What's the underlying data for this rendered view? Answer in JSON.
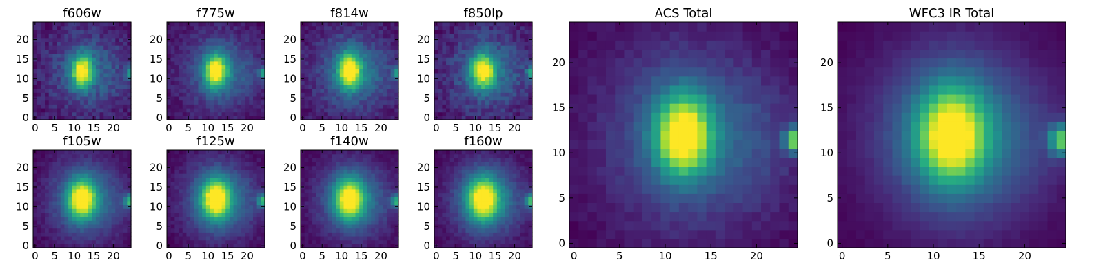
{
  "chart_data": [
    {
      "type": "heatmap",
      "title": "f606w",
      "grid_size": 25,
      "colormap": "viridis",
      "xlim": [
        -0.5,
        24.5
      ],
      "ylim": [
        -0.5,
        24.5
      ],
      "xticks": [
        0,
        5,
        10,
        15,
        20
      ],
      "yticks": [
        0,
        5,
        10,
        15,
        20
      ],
      "source_peak": {
        "x": 12,
        "y": 12,
        "sigma_x": 1.8,
        "sigma_y": 2.8
      },
      "companion_peak": {
        "x": 24,
        "y": 11.5,
        "sigma_x": 0.7,
        "sigma_y": 1.0,
        "amplitude": 0.55
      },
      "halo_amplitude": 0.35,
      "noise_level": 0.1
    },
    {
      "type": "heatmap",
      "title": "f775w",
      "grid_size": 25,
      "colormap": "viridis",
      "xlim": [
        -0.5,
        24.5
      ],
      "ylim": [
        -0.5,
        24.5
      ],
      "xticks": [
        0,
        5,
        10,
        15,
        20
      ],
      "yticks": [
        0,
        5,
        10,
        15,
        20
      ],
      "source_peak": {
        "x": 12,
        "y": 12,
        "sigma_x": 1.9,
        "sigma_y": 2.9
      },
      "companion_peak": {
        "x": 24,
        "y": 11.5,
        "sigma_x": 0.7,
        "sigma_y": 1.0,
        "amplitude": 0.6
      },
      "halo_amplitude": 0.38,
      "noise_level": 0.07
    },
    {
      "type": "heatmap",
      "title": "f814w",
      "grid_size": 25,
      "colormap": "viridis",
      "xlim": [
        -0.5,
        24.5
      ],
      "ylim": [
        -0.5,
        24.5
      ],
      "xticks": [
        0,
        5,
        10,
        15,
        20
      ],
      "yticks": [
        0,
        5,
        10,
        15,
        20
      ],
      "source_peak": {
        "x": 12,
        "y": 12,
        "sigma_x": 2.0,
        "sigma_y": 3.0
      },
      "companion_peak": {
        "x": 24,
        "y": 11.5,
        "sigma_x": 0.7,
        "sigma_y": 1.0,
        "amplitude": 0.6
      },
      "halo_amplitude": 0.4,
      "noise_level": 0.08
    },
    {
      "type": "heatmap",
      "title": "f850lp",
      "grid_size": 25,
      "colormap": "viridis",
      "xlim": [
        -0.5,
        24.5
      ],
      "ylim": [
        -0.5,
        24.5
      ],
      "xticks": [
        0,
        5,
        10,
        15,
        20
      ],
      "yticks": [
        0,
        5,
        10,
        15,
        20
      ],
      "source_peak": {
        "x": 12,
        "y": 12,
        "sigma_x": 2.0,
        "sigma_y": 3.0
      },
      "companion_peak": {
        "x": 24,
        "y": 11.5,
        "sigma_x": 0.7,
        "sigma_y": 1.0,
        "amplitude": 0.65
      },
      "halo_amplitude": 0.4,
      "noise_level": 0.1
    },
    {
      "type": "heatmap",
      "title": "f105w",
      "grid_size": 25,
      "colormap": "viridis",
      "xlim": [
        -0.5,
        24.5
      ],
      "ylim": [
        -0.5,
        24.5
      ],
      "xticks": [
        0,
        5,
        10,
        15,
        20
      ],
      "yticks": [
        0,
        5,
        10,
        15,
        20
      ],
      "source_peak": {
        "x": 12,
        "y": 12,
        "sigma_x": 2.3,
        "sigma_y": 3.3
      },
      "companion_peak": {
        "x": 24,
        "y": 11.5,
        "sigma_x": 0.9,
        "sigma_y": 1.2,
        "amplitude": 0.7
      },
      "halo_amplitude": 0.5,
      "noise_level": 0.05
    },
    {
      "type": "heatmap",
      "title": "f125w",
      "grid_size": 25,
      "colormap": "viridis",
      "xlim": [
        -0.5,
        24.5
      ],
      "ylim": [
        -0.5,
        24.5
      ],
      "xticks": [
        0,
        5,
        10,
        15,
        20
      ],
      "yticks": [
        0,
        5,
        10,
        15,
        20
      ],
      "source_peak": {
        "x": 12,
        "y": 12,
        "sigma_x": 2.4,
        "sigma_y": 3.4
      },
      "companion_peak": {
        "x": 24,
        "y": 11.5,
        "sigma_x": 0.9,
        "sigma_y": 1.2,
        "amplitude": 0.7
      },
      "halo_amplitude": 0.52,
      "noise_level": 0.05
    },
    {
      "type": "heatmap",
      "title": "f140w",
      "grid_size": 25,
      "colormap": "viridis",
      "xlim": [
        -0.5,
        24.5
      ],
      "ylim": [
        -0.5,
        24.5
      ],
      "xticks": [
        0,
        5,
        10,
        15,
        20
      ],
      "yticks": [
        0,
        5,
        10,
        15,
        20
      ],
      "source_peak": {
        "x": 12,
        "y": 12,
        "sigma_x": 2.5,
        "sigma_y": 3.5
      },
      "companion_peak": {
        "x": 24,
        "y": 11.5,
        "sigma_x": 0.9,
        "sigma_y": 1.2,
        "amplitude": 0.72
      },
      "halo_amplitude": 0.55,
      "noise_level": 0.05
    },
    {
      "type": "heatmap",
      "title": "f160w",
      "grid_size": 25,
      "colormap": "viridis",
      "xlim": [
        -0.5,
        24.5
      ],
      "ylim": [
        -0.5,
        24.5
      ],
      "xticks": [
        0,
        5,
        10,
        15,
        20
      ],
      "yticks": [
        0,
        5,
        10,
        15,
        20
      ],
      "source_peak": {
        "x": 12,
        "y": 12,
        "sigma_x": 2.6,
        "sigma_y": 3.6
      },
      "companion_peak": {
        "x": 24,
        "y": 11.5,
        "sigma_x": 0.9,
        "sigma_y": 1.2,
        "amplitude": 0.75
      },
      "halo_amplitude": 0.56,
      "noise_level": 0.05
    },
    {
      "type": "heatmap",
      "title": "ACS Total",
      "grid_size": 25,
      "colormap": "viridis",
      "xlim": [
        -0.5,
        24.5
      ],
      "ylim": [
        -0.5,
        24.5
      ],
      "xticks": [
        0,
        5,
        10,
        15,
        20
      ],
      "yticks": [
        0,
        5,
        10,
        15,
        20
      ],
      "source_peak": {
        "x": 12,
        "y": 12,
        "sigma_x": 2.0,
        "sigma_y": 3.0
      },
      "companion_peak": {
        "x": 24,
        "y": 11.5,
        "sigma_x": 0.7,
        "sigma_y": 1.0,
        "amplitude": 0.85
      },
      "halo_amplitude": 0.4,
      "noise_level": 0.04
    },
    {
      "type": "heatmap",
      "title": "WFC3 IR Total",
      "grid_size": 25,
      "colormap": "viridis",
      "xlim": [
        -0.5,
        24.5
      ],
      "ylim": [
        -0.5,
        24.5
      ],
      "xticks": [
        0,
        5,
        10,
        15,
        20
      ],
      "yticks": [
        0,
        5,
        10,
        15,
        20
      ],
      "source_peak": {
        "x": 12,
        "y": 12,
        "sigma_x": 2.5,
        "sigma_y": 3.5
      },
      "companion_peak": {
        "x": 24,
        "y": 11.5,
        "sigma_x": 0.9,
        "sigma_y": 1.2,
        "amplitude": 0.85
      },
      "halo_amplitude": 0.55,
      "noise_level": 0.02
    }
  ]
}
